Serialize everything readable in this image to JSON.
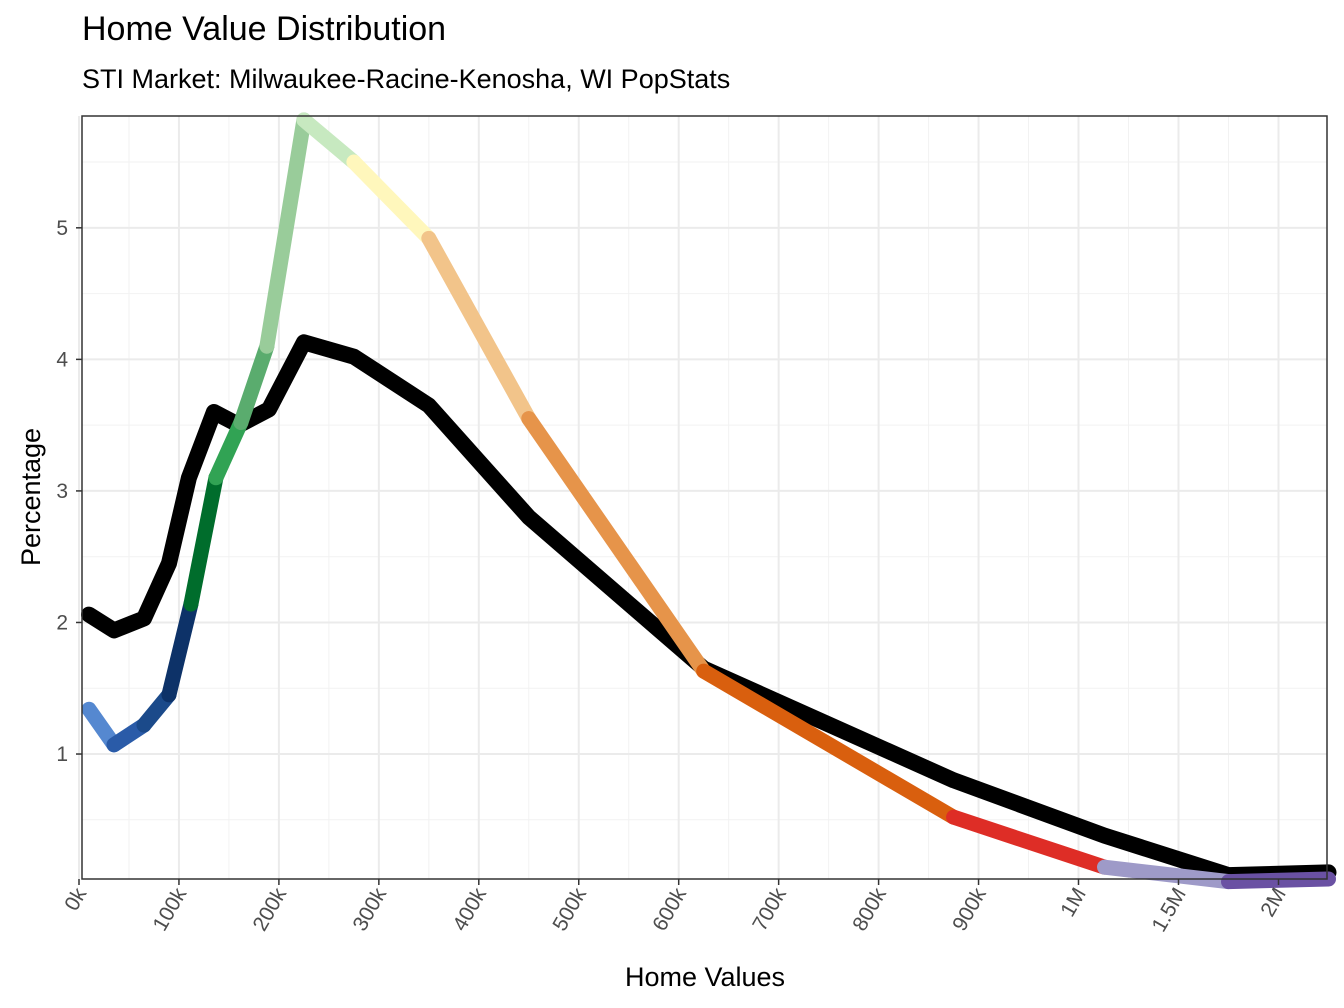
{
  "title": "Home Value Distribution",
  "subtitle": "STI Market: Milwaukee-Racine-Kenosha, WI PopStats",
  "chart_data": {
    "type": "line",
    "title": "Home Value Distribution",
    "subtitle": "STI Market: Milwaukee-Racine-Kenosha, WI PopStats",
    "xlabel": "Home Values",
    "ylabel": "Percentage",
    "x_tick_labels": [
      "0k",
      "100k",
      "200k",
      "300k",
      "400k",
      "500k",
      "600k",
      "700k",
      "800k",
      "900k",
      "1M",
      "1.5M",
      "2M"
    ],
    "y_ticks": [
      1,
      2,
      3,
      4,
      5
    ],
    "ylim": [
      0.05,
      5.85
    ],
    "grid": true,
    "x_scale": "piecewise: linear 0k-1M, then 1M-2M compressed",
    "series": [
      {
        "color": "#000000",
        "points": [
          {
            "x": "10k",
            "y": 2.06
          },
          {
            "x": "35k",
            "y": 1.94
          },
          {
            "x": "65k",
            "y": 2.03
          },
          {
            "x": "90k",
            "y": 2.45
          },
          {
            "x": "110k",
            "y": 3.1
          },
          {
            "x": "135k",
            "y": 3.6
          },
          {
            "x": "160k",
            "y": 3.5
          },
          {
            "x": "190k",
            "y": 3.62
          },
          {
            "x": "225k",
            "y": 4.13
          },
          {
            "x": "275k",
            "y": 4.02
          },
          {
            "x": "350k",
            "y": 3.65
          },
          {
            "x": "450k",
            "y": 2.8
          },
          {
            "x": "625k",
            "y": 1.65
          },
          {
            "x": "875k",
            "y": 0.8
          },
          {
            "x": "1.13M",
            "y": 0.38
          },
          {
            "x": "1.75M",
            "y": 0.08
          },
          {
            "x": "2.5M",
            "y": 0.1
          }
        ]
      },
      {
        "colored_segments": [
          {
            "color": "#5588d0",
            "from": {
              "x": "10k",
              "y": 1.34
            },
            "to": {
              "x": "35k",
              "y": 1.07
            }
          },
          {
            "color": "#2a5ba8",
            "from": {
              "x": "35k",
              "y": 1.07
            },
            "to": {
              "x": "65k",
              "y": 1.22
            }
          },
          {
            "color": "#1b4a8a",
            "from": {
              "x": "65k",
              "y": 1.22
            },
            "to": {
              "x": "90k",
              "y": 1.45
            }
          },
          {
            "color": "#0d3268",
            "from": {
              "x": "90k",
              "y": 1.45
            },
            "to": {
              "x": "112k",
              "y": 2.14
            }
          },
          {
            "color": "#006d2c",
            "from": {
              "x": "112k",
              "y": 2.14
            },
            "to": {
              "x": "137k",
              "y": 3.1
            }
          },
          {
            "color": "#31a354",
            "from": {
              "x": "137k",
              "y": 3.1
            },
            "to": {
              "x": "162k",
              "y": 3.52
            }
          },
          {
            "color": "#5aac6e",
            "from": {
              "x": "162k",
              "y": 3.52
            },
            "to": {
              "x": "188k",
              "y": 4.1
            }
          },
          {
            "color": "#99cc9a",
            "from": {
              "x": "188k",
              "y": 4.1
            },
            "to": {
              "x": "225k",
              "y": 5.82
            }
          },
          {
            "color": "#c7e9c0",
            "from": {
              "x": "225k",
              "y": 5.82
            },
            "to": {
              "x": "275k",
              "y": 5.5
            }
          },
          {
            "color": "#fff7bc",
            "from": {
              "x": "275k",
              "y": 5.5
            },
            "to": {
              "x": "350k",
              "y": 4.92
            }
          },
          {
            "color": "#f2c48a",
            "from": {
              "x": "350k",
              "y": 4.92
            },
            "to": {
              "x": "450k",
              "y": 3.55
            }
          },
          {
            "color": "#e6944a",
            "from": {
              "x": "450k",
              "y": 3.55
            },
            "to": {
              "x": "625k",
              "y": 1.63
            }
          },
          {
            "color": "#d95f0e",
            "from": {
              "x": "625k",
              "y": 1.63
            },
            "to": {
              "x": "875k",
              "y": 0.52
            }
          },
          {
            "color": "#de2d26",
            "from": {
              "x": "875k",
              "y": 0.52
            },
            "to": {
              "x": "1.13M",
              "y": 0.14
            }
          },
          {
            "color": "#9e9ac8",
            "from": {
              "x": "1.13M",
              "y": 0.14
            },
            "to": {
              "x": "1.75M",
              "y": 0.03
            }
          },
          {
            "color": "#6a51a3",
            "from": {
              "x": "1.75M",
              "y": 0.03
            },
            "to": {
              "x": "2.5M",
              "y": 0.05
            }
          }
        ]
      }
    ]
  }
}
